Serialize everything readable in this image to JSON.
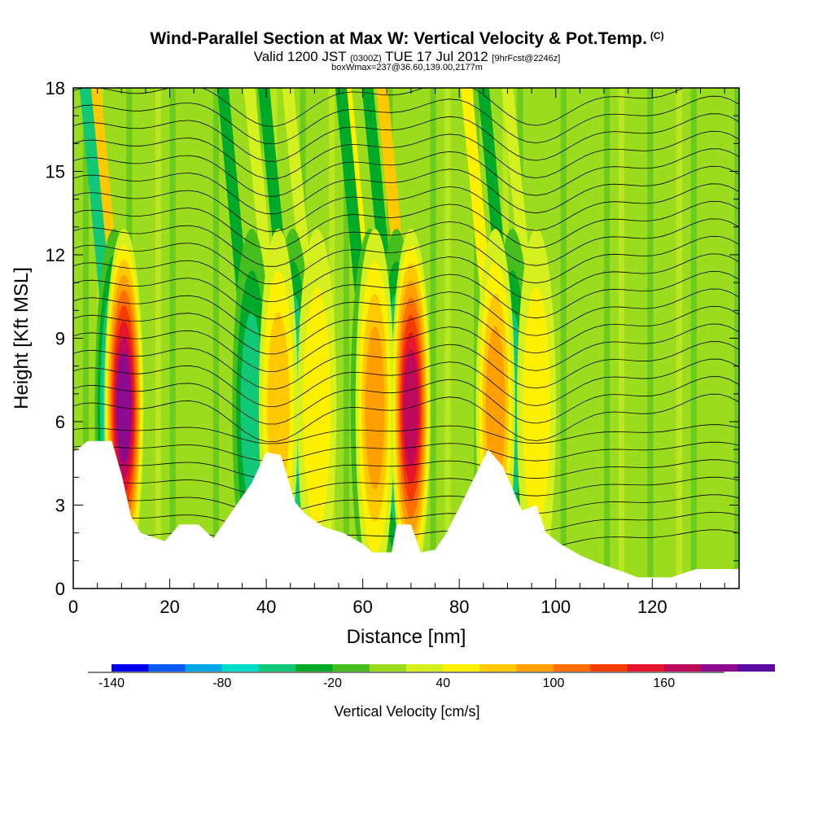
{
  "title": {
    "main": "Wind-Parallel Section at Max W: Vertical Velocity & Pot.Temp.",
    "copyright": "(C)",
    "valid_prefix": "Valid 1200 JST",
    "valid_utc": "(0300Z)",
    "valid_date": "TUE 17 Jul 2012",
    "forecast": "[9hrFcst@2246z]",
    "boxwmax": "boxWmax=237@36.60,139.00,2177m"
  },
  "chart_data": {
    "type": "heatmap",
    "xlabel": "Distance [nm]",
    "ylabel": "Height [Kft MSL]",
    "xlim": [
      0,
      138
    ],
    "ylim": [
      0,
      18
    ],
    "xticks": [
      0,
      20,
      40,
      60,
      80,
      100,
      120
    ],
    "yticks": [
      0,
      3,
      6,
      9,
      12,
      15,
      18
    ],
    "colorbar": {
      "title": "Vertical Velocity [cm/s]",
      "min": -140,
      "max": 180,
      "step": 20,
      "labels": [
        -140,
        -80,
        -20,
        40,
        100,
        160
      ],
      "colors": [
        "#0000ee",
        "#0a5af5",
        "#00a8e6",
        "#00dcc8",
        "#10c878",
        "#00aa28",
        "#46be1e",
        "#9cdc1e",
        "#d4f01e",
        "#fff000",
        "#ffc800",
        "#ffa000",
        "#ff6e00",
        "#f53c00",
        "#e6142d",
        "#be0a5a",
        "#8c0a8c",
        "#5a0aa0"
      ]
    },
    "terrain_kft": [
      [
        0,
        4.9
      ],
      [
        3,
        5.3
      ],
      [
        8,
        5.3
      ],
      [
        10,
        4.1
      ],
      [
        12,
        2.6
      ],
      [
        14,
        2.0
      ],
      [
        19,
        1.7
      ],
      [
        22,
        2.3
      ],
      [
        26,
        2.3
      ],
      [
        29,
        1.8
      ],
      [
        31,
        2.3
      ],
      [
        37,
        3.8
      ],
      [
        40,
        4.9
      ],
      [
        43,
        4.8
      ],
      [
        46,
        3.1
      ],
      [
        48,
        2.7
      ],
      [
        52,
        2.2
      ],
      [
        56,
        2.0
      ],
      [
        60,
        1.6
      ],
      [
        62,
        1.3
      ],
      [
        66,
        1.3
      ],
      [
        67,
        2.3
      ],
      [
        70,
        2.3
      ],
      [
        72,
        1.3
      ],
      [
        75,
        1.4
      ],
      [
        77,
        1.9
      ],
      [
        80,
        2.9
      ],
      [
        84,
        4.3
      ],
      [
        86,
        5.0
      ],
      [
        89,
        4.4
      ],
      [
        91,
        3.6
      ],
      [
        93,
        2.8
      ],
      [
        96,
        3.0
      ],
      [
        98,
        2.0
      ],
      [
        101,
        1.6
      ],
      [
        105,
        1.2
      ],
      [
        109,
        0.9
      ],
      [
        114,
        0.6
      ],
      [
        117,
        0.4
      ],
      [
        124,
        0.4
      ],
      [
        129,
        0.7
      ],
      [
        134,
        0.7
      ],
      [
        138,
        0.7
      ]
    ],
    "updraft_cores": [
      {
        "x": 10.5,
        "w": 200
      },
      {
        "x": 42.5,
        "w": 80
      },
      {
        "x": 50.5,
        "w": 60
      },
      {
        "x": 62.5,
        "w": 90
      },
      {
        "x": 70,
        "w": 180
      },
      {
        "x": 87.5,
        "w": 100
      },
      {
        "x": 96,
        "w": 60
      }
    ],
    "downdraft_cores": [
      {
        "x": 8.5,
        "w": -100
      },
      {
        "x": 37,
        "w": -60
      },
      {
        "x": 45.5,
        "w": -80
      },
      {
        "x": 61.5,
        "w": -60
      },
      {
        "x": 67,
        "w": -80
      },
      {
        "x": 91,
        "w": -60
      }
    ]
  }
}
